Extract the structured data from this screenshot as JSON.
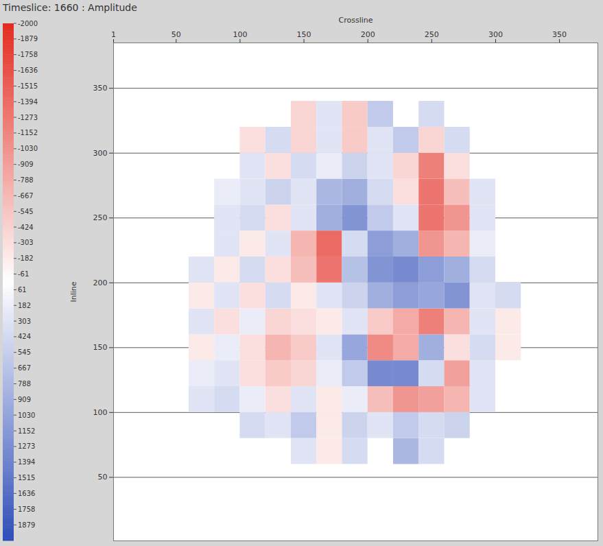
{
  "chart_data": {
    "type": "heatmap",
    "title": "Timeslice: 1660 : Amplitude",
    "x_label": "Crossline",
    "y_label": "Inline",
    "xlim": [
      1,
      380
    ],
    "ylim": [
      1,
      385
    ],
    "xticks": [
      1,
      50,
      100,
      150,
      200,
      250,
      300,
      350
    ],
    "yticks": [
      50,
      100,
      150,
      200,
      250,
      300,
      350
    ],
    "grid": true,
    "colors": [
      "#e32b21",
      "#ffffff",
      "#2f4db8"
    ],
    "x_bins": [
      60,
      80,
      100,
      120,
      140,
      160,
      180,
      200,
      220,
      240,
      260,
      280,
      300,
      320
    ],
    "y_bins": [
      60,
      80,
      100,
      120,
      140,
      160,
      180,
      200,
      220,
      240,
      260,
      280,
      300,
      320,
      340
    ],
    "values": [
      [
        null,
        null,
        null,
        null,
        300,
        -200,
        400,
        null,
        800,
        400,
        null,
        null,
        null
      ],
      [
        null,
        null,
        400,
        300,
        600,
        -200,
        500,
        300,
        600,
        400,
        500,
        null,
        null
      ],
      [
        300,
        400,
        200,
        -300,
        300,
        -200,
        200,
        -600,
        -1000,
        -900,
        -700,
        300,
        null
      ],
      [
        200,
        300,
        -300,
        -500,
        -400,
        200,
        600,
        1300,
        1300,
        400,
        -900,
        300,
        null
      ],
      [
        -200,
        200,
        -300,
        -700,
        -500,
        300,
        1000,
        -1100,
        -800,
        900,
        -300,
        400,
        -200
      ],
      [
        300,
        -300,
        200,
        -400,
        -300,
        -200,
        300,
        -500,
        -800,
        -1200,
        -700,
        300,
        -200
      ],
      [
        -200,
        300,
        -300,
        400,
        -200,
        300,
        500,
        900,
        1100,
        1000,
        1200,
        300,
        400
      ],
      [
        300,
        -200,
        400,
        -300,
        -600,
        -1300,
        700,
        1200,
        1300,
        1100,
        900,
        400,
        null
      ],
      [
        null,
        300,
        -200,
        300,
        -700,
        -1400,
        400,
        1100,
        900,
        -1000,
        -700,
        200,
        null
      ],
      [
        null,
        300,
        400,
        -300,
        300,
        900,
        1200,
        600,
        300,
        -1300,
        -1000,
        300,
        null
      ],
      [
        null,
        200,
        300,
        500,
        300,
        800,
        900,
        400,
        -300,
        -1300,
        -600,
        300,
        null
      ],
      [
        null,
        null,
        300,
        -300,
        400,
        200,
        500,
        300,
        -400,
        -1200,
        -300,
        null,
        null
      ],
      [
        null,
        null,
        -300,
        400,
        -400,
        300,
        -500,
        300,
        600,
        -400,
        400,
        null,
        null
      ],
      [
        null,
        null,
        null,
        null,
        -400,
        300,
        -500,
        600,
        null,
        400,
        null,
        null,
        null
      ]
    ],
    "colorbar": {
      "range": [
        -2000,
        2000
      ],
      "ticks": [
        -2000,
        -1879,
        -1758,
        -1636,
        -1515,
        -1394,
        -1273,
        -1152,
        -1030,
        -909,
        -788,
        -667,
        -545,
        -424,
        -303,
        -182,
        -61,
        61,
        182,
        303,
        424,
        545,
        667,
        788,
        909,
        1030,
        1152,
        1273,
        1394,
        1515,
        1636,
        1758,
        1879
      ]
    }
  }
}
